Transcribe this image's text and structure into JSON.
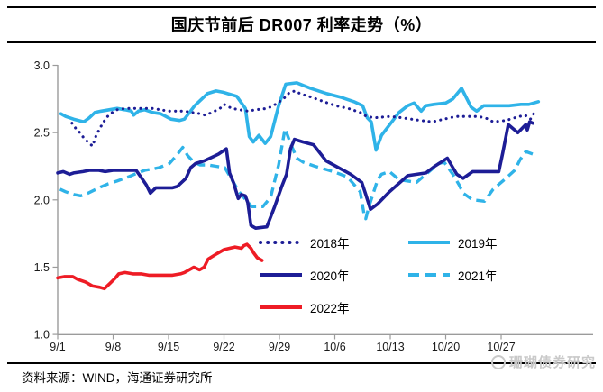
{
  "page": {
    "title": "国庆节前后 DR007 利率走势（%）",
    "source_note": "资料来源：WIND，海通证券研究所",
    "watermark": "珊瑚债券研究"
  },
  "chart_data": {
    "type": "line",
    "title": "国庆节前后 DR007 利率走势（%）",
    "xlabel": "",
    "ylabel": "",
    "ylim": [
      1.0,
      3.0
    ],
    "grid": false,
    "legend_position": "inside-lower-right",
    "x_unit": "days since 9/1",
    "y_ticks": [
      {
        "value": 3.0,
        "label": "3.0"
      },
      {
        "value": 2.5,
        "label": "2.5"
      },
      {
        "value": 2.0,
        "label": "2.0"
      },
      {
        "value": 1.5,
        "label": "1.5"
      },
      {
        "value": 1.0,
        "label": "1.0"
      }
    ],
    "x_ticks": [
      {
        "day": 0,
        "label": "9/1"
      },
      {
        "day": 7,
        "label": "9/8"
      },
      {
        "day": 14,
        "label": "9/15"
      },
      {
        "day": 21,
        "label": "9/22"
      },
      {
        "day": 28,
        "label": "9/29"
      },
      {
        "day": 35,
        "label": "10/6"
      },
      {
        "day": 42,
        "label": "10/13"
      },
      {
        "day": 49,
        "label": "10/20"
      },
      {
        "day": 56,
        "label": "10/27"
      }
    ],
    "series": [
      {
        "key": "2018",
        "name": "2018年",
        "color": "#1d1d96",
        "style": "dotted",
        "points": [
          [
            1.8,
            2.57
          ],
          [
            2.3,
            2.53
          ],
          [
            2.8,
            2.5
          ],
          [
            3.3,
            2.46
          ],
          [
            3.8,
            2.43
          ],
          [
            4.4,
            2.4
          ],
          [
            4.8,
            2.47
          ],
          [
            5.3,
            2.53
          ],
          [
            5.8,
            2.58
          ],
          [
            6.3,
            2.62
          ],
          [
            6.9,
            2.65
          ],
          [
            7.5,
            2.67
          ],
          [
            8.5,
            2.68
          ],
          [
            10,
            2.68
          ],
          [
            12,
            2.68
          ],
          [
            13,
            2.67
          ],
          [
            14,
            2.66
          ],
          [
            15,
            2.66
          ],
          [
            16,
            2.66
          ],
          [
            17,
            2.65
          ],
          [
            18,
            2.64
          ],
          [
            18.6,
            2.63
          ],
          [
            19.5,
            2.65
          ],
          [
            20.5,
            2.68
          ],
          [
            21,
            2.71
          ],
          [
            22,
            2.68
          ],
          [
            23,
            2.67
          ],
          [
            24,
            2.66
          ],
          [
            25,
            2.67
          ],
          [
            26.5,
            2.68
          ],
          [
            27.5,
            2.71
          ],
          [
            28.5,
            2.75
          ],
          [
            29.3,
            2.8
          ],
          [
            30,
            2.81
          ],
          [
            30.6,
            2.79
          ],
          [
            32.2,
            2.76
          ],
          [
            33.6,
            2.73
          ],
          [
            35.1,
            2.7
          ],
          [
            36.7,
            2.68
          ],
          [
            38.2,
            2.65
          ],
          [
            39,
            2.62
          ],
          [
            40,
            2.61
          ],
          [
            42,
            2.62
          ],
          [
            43.5,
            2.61
          ],
          [
            45.8,
            2.59
          ],
          [
            47.3,
            2.58
          ],
          [
            48.8,
            2.6
          ],
          [
            50.3,
            2.62
          ],
          [
            53,
            2.62
          ],
          [
            54,
            2.61
          ],
          [
            55,
            2.58
          ],
          [
            56.6,
            2.59
          ],
          [
            57.7,
            2.61
          ],
          [
            59,
            2.63
          ],
          [
            59.7,
            2.6
          ],
          [
            60.3,
            2.66
          ]
        ]
      },
      {
        "key": "2019",
        "name": "2019年",
        "color": "#2fb3e8",
        "style": "solid",
        "points": [
          [
            0.4,
            2.64
          ],
          [
            1,
            2.62
          ],
          [
            2,
            2.6
          ],
          [
            3.3,
            2.58
          ],
          [
            4,
            2.61
          ],
          [
            4.7,
            2.65
          ],
          [
            5.5,
            2.66
          ],
          [
            6.5,
            2.67
          ],
          [
            7.5,
            2.68
          ],
          [
            8.5,
            2.67
          ],
          [
            9.3,
            2.66
          ],
          [
            9.6,
            2.63
          ],
          [
            10.2,
            2.66
          ],
          [
            11,
            2.67
          ],
          [
            12,
            2.65
          ],
          [
            13,
            2.64
          ],
          [
            14.3,
            2.6
          ],
          [
            15.4,
            2.59
          ],
          [
            16,
            2.6
          ],
          [
            17.3,
            2.7
          ],
          [
            18.9,
            2.79
          ],
          [
            20,
            2.81
          ],
          [
            20.9,
            2.8
          ],
          [
            22.6,
            2.77
          ],
          [
            23.7,
            2.68
          ],
          [
            24.2,
            2.47
          ],
          [
            24.7,
            2.43
          ],
          [
            25.4,
            2.48
          ],
          [
            26.2,
            2.42
          ],
          [
            26.9,
            2.47
          ],
          [
            27.9,
            2.7
          ],
          [
            28.8,
            2.86
          ],
          [
            30.2,
            2.87
          ],
          [
            31.9,
            2.83
          ],
          [
            34,
            2.79
          ],
          [
            35.9,
            2.76
          ],
          [
            37.4,
            2.73
          ],
          [
            38.5,
            2.7
          ],
          [
            39.1,
            2.61
          ],
          [
            39.6,
            2.58
          ],
          [
            40.2,
            2.37
          ],
          [
            40.9,
            2.48
          ],
          [
            41.8,
            2.55
          ],
          [
            43.1,
            2.65
          ],
          [
            44.2,
            2.7
          ],
          [
            45,
            2.72
          ],
          [
            45.9,
            2.66
          ],
          [
            46.5,
            2.7
          ],
          [
            47.5,
            2.71
          ],
          [
            49,
            2.72
          ],
          [
            49.9,
            2.75
          ],
          [
            51,
            2.83
          ],
          [
            52.2,
            2.69
          ],
          [
            52.9,
            2.66
          ],
          [
            53.8,
            2.7
          ],
          [
            55,
            2.7
          ],
          [
            57,
            2.7
          ],
          [
            58.5,
            2.71
          ],
          [
            59.5,
            2.71
          ],
          [
            60.7,
            2.73
          ]
        ]
      },
      {
        "key": "2020",
        "name": "2020年",
        "color": "#1d1d96",
        "style": "solid",
        "points": [
          [
            0,
            2.2
          ],
          [
            0.7,
            2.21
          ],
          [
            1.5,
            2.19
          ],
          [
            2,
            2.2
          ],
          [
            3.2,
            2.21
          ],
          [
            4,
            2.22
          ],
          [
            5.2,
            2.22
          ],
          [
            6,
            2.21
          ],
          [
            7,
            2.22
          ],
          [
            9,
            2.22
          ],
          [
            9.9,
            2.22
          ],
          [
            10.5,
            2.17
          ],
          [
            11.2,
            2.11
          ],
          [
            11.7,
            2.05
          ],
          [
            12.4,
            2.09
          ],
          [
            13.5,
            2.09
          ],
          [
            14.5,
            2.09
          ],
          [
            15.1,
            2.1
          ],
          [
            16.2,
            2.16
          ],
          [
            16.8,
            2.24
          ],
          [
            17.4,
            2.27
          ],
          [
            18.5,
            2.29
          ],
          [
            19.6,
            2.32
          ],
          [
            20.3,
            2.34
          ],
          [
            21.3,
            2.38
          ],
          [
            21.7,
            2.2
          ],
          [
            22.2,
            2.13
          ],
          [
            22.8,
            2.01
          ],
          [
            23.2,
            2.04
          ],
          [
            23.7,
            2.03
          ],
          [
            24,
            1.98
          ],
          [
            24.4,
            1.81
          ],
          [
            25,
            1.79
          ],
          [
            26.4,
            1.8
          ],
          [
            27.4,
            1.95
          ],
          [
            28.3,
            2.1
          ],
          [
            28.9,
            2.19
          ],
          [
            29.4,
            2.38
          ],
          [
            29.9,
            2.45
          ],
          [
            31,
            2.43
          ],
          [
            32.3,
            2.41
          ],
          [
            33.9,
            2.29
          ],
          [
            37,
            2.19
          ],
          [
            38.4,
            2.13
          ],
          [
            38.9,
            2.04
          ],
          [
            39.5,
            1.93
          ],
          [
            40.4,
            1.97
          ],
          [
            41.9,
            2.06
          ],
          [
            44.2,
            2.18
          ],
          [
            46.5,
            2.2
          ],
          [
            47.6,
            2.25
          ],
          [
            49.2,
            2.31
          ],
          [
            50.4,
            2.19
          ],
          [
            51.2,
            2.16
          ],
          [
            52.4,
            2.21
          ],
          [
            55.7,
            2.21
          ],
          [
            56.2,
            2.35
          ],
          [
            56.6,
            2.47
          ],
          [
            56.9,
            2.56
          ],
          [
            58.1,
            2.5
          ],
          [
            59.1,
            2.56
          ],
          [
            59.3,
            2.52
          ],
          [
            59.6,
            2.58
          ],
          [
            60,
            2.57
          ]
        ]
      },
      {
        "key": "2021",
        "name": "2021年",
        "color": "#2fb3e8",
        "style": "dashed",
        "points": [
          [
            0.3,
            2.08
          ],
          [
            1,
            2.06
          ],
          [
            2,
            2.04
          ],
          [
            2.9,
            2.03
          ],
          [
            3.5,
            2.04
          ],
          [
            5.2,
            2.09
          ],
          [
            6.4,
            2.12
          ],
          [
            7.5,
            2.14
          ],
          [
            8.9,
            2.17
          ],
          [
            10.1,
            2.2
          ],
          [
            11,
            2.22
          ],
          [
            12,
            2.23
          ],
          [
            12.8,
            2.24
          ],
          [
            14.1,
            2.27
          ],
          [
            15,
            2.33
          ],
          [
            15.8,
            2.39
          ],
          [
            16.4,
            2.33
          ],
          [
            17.2,
            2.28
          ],
          [
            18,
            2.26
          ],
          [
            19,
            2.26
          ],
          [
            20,
            2.25
          ],
          [
            21.1,
            2.24
          ],
          [
            22.3,
            2.12
          ],
          [
            22.9,
            2.06
          ],
          [
            23.9,
            1.99
          ],
          [
            24.5,
            1.95
          ],
          [
            25.9,
            1.95
          ],
          [
            26.9,
            2.02
          ],
          [
            27.9,
            2.26
          ],
          [
            28.7,
            2.53
          ],
          [
            29.4,
            2.42
          ],
          [
            30.2,
            2.31
          ],
          [
            31,
            2.28
          ],
          [
            32.5,
            2.25
          ],
          [
            34.8,
            2.21
          ],
          [
            36.6,
            2.17
          ],
          [
            38.2,
            2.06
          ],
          [
            38.7,
            1.89
          ],
          [
            38.9,
            1.86
          ],
          [
            39.3,
            1.95
          ],
          [
            40.4,
            2.15
          ],
          [
            40.9,
            2.19
          ],
          [
            41.9,
            2.21
          ],
          [
            43.1,
            2.15
          ],
          [
            45.3,
            2.13
          ],
          [
            47.3,
            2.23
          ],
          [
            48.1,
            2.27
          ],
          [
            48.8,
            2.28
          ],
          [
            49.9,
            2.19
          ],
          [
            50.7,
            2.11
          ],
          [
            51.2,
            2.05
          ],
          [
            52.4,
            2.0
          ],
          [
            53.9,
            1.99
          ],
          [
            55,
            2.08
          ],
          [
            56.6,
            2.16
          ],
          [
            57.7,
            2.22
          ],
          [
            58.4,
            2.3
          ],
          [
            59.1,
            2.36
          ],
          [
            60,
            2.34
          ]
        ]
      },
      {
        "key": "2022",
        "name": "2022年",
        "color": "#ee1c25",
        "style": "solid",
        "points": [
          [
            0,
            1.42
          ],
          [
            0.9,
            1.43
          ],
          [
            1.9,
            1.43
          ],
          [
            2.5,
            1.41
          ],
          [
            3.5,
            1.39
          ],
          [
            4.4,
            1.36
          ],
          [
            5.3,
            1.35
          ],
          [
            5.9,
            1.34
          ],
          [
            6.6,
            1.38
          ],
          [
            7.3,
            1.42
          ],
          [
            7.7,
            1.45
          ],
          [
            8.5,
            1.46
          ],
          [
            9.5,
            1.45
          ],
          [
            10.5,
            1.45
          ],
          [
            11.5,
            1.44
          ],
          [
            12.5,
            1.44
          ],
          [
            13.5,
            1.44
          ],
          [
            14.5,
            1.44
          ],
          [
            15.5,
            1.45
          ],
          [
            16,
            1.46
          ],
          [
            17.2,
            1.5
          ],
          [
            17.9,
            1.48
          ],
          [
            18.5,
            1.5
          ],
          [
            19,
            1.56
          ],
          [
            20.1,
            1.6
          ],
          [
            21,
            1.63
          ],
          [
            21.7,
            1.64
          ],
          [
            22.4,
            1.65
          ],
          [
            23.2,
            1.64
          ],
          [
            23.5,
            1.66
          ],
          [
            23.9,
            1.67
          ],
          [
            24.4,
            1.64
          ],
          [
            24.7,
            1.61
          ],
          [
            25.2,
            1.57
          ],
          [
            25.8,
            1.55
          ]
        ]
      }
    ]
  }
}
